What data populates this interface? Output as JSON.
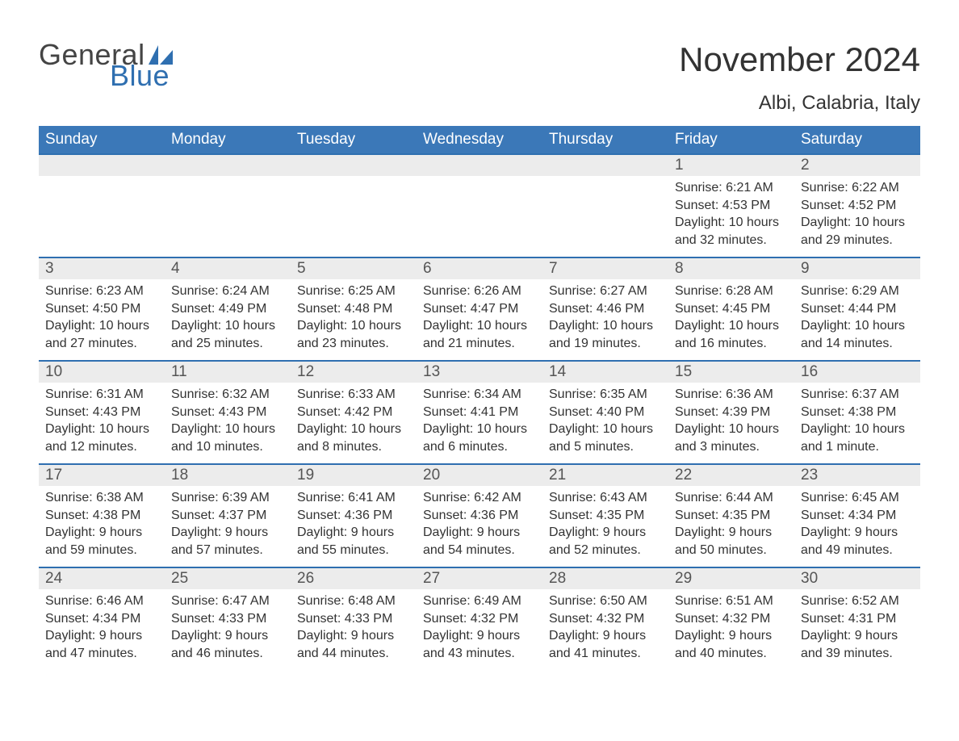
{
  "brand": {
    "word1": "General",
    "word2": "Blue",
    "sail_color": "#2f6fb0",
    "text_color": "#444444"
  },
  "title": "November 2024",
  "location": "Albi, Calabria, Italy",
  "colors": {
    "header_bg": "#3b78b8",
    "header_text": "#ffffff",
    "rule": "#2f6fb0",
    "daynum_bg": "#ececec",
    "body_text": "#333333"
  },
  "weekdays": [
    "Sunday",
    "Monday",
    "Tuesday",
    "Wednesday",
    "Thursday",
    "Friday",
    "Saturday"
  ],
  "weeks": [
    [
      null,
      null,
      null,
      null,
      null,
      {
        "n": "1",
        "sunrise": "Sunrise: 6:21 AM",
        "sunset": "Sunset: 4:53 PM",
        "day1": "Daylight: 10 hours",
        "day2": "and 32 minutes."
      },
      {
        "n": "2",
        "sunrise": "Sunrise: 6:22 AM",
        "sunset": "Sunset: 4:52 PM",
        "day1": "Daylight: 10 hours",
        "day2": "and 29 minutes."
      }
    ],
    [
      {
        "n": "3",
        "sunrise": "Sunrise: 6:23 AM",
        "sunset": "Sunset: 4:50 PM",
        "day1": "Daylight: 10 hours",
        "day2": "and 27 minutes."
      },
      {
        "n": "4",
        "sunrise": "Sunrise: 6:24 AM",
        "sunset": "Sunset: 4:49 PM",
        "day1": "Daylight: 10 hours",
        "day2": "and 25 minutes."
      },
      {
        "n": "5",
        "sunrise": "Sunrise: 6:25 AM",
        "sunset": "Sunset: 4:48 PM",
        "day1": "Daylight: 10 hours",
        "day2": "and 23 minutes."
      },
      {
        "n": "6",
        "sunrise": "Sunrise: 6:26 AM",
        "sunset": "Sunset: 4:47 PM",
        "day1": "Daylight: 10 hours",
        "day2": "and 21 minutes."
      },
      {
        "n": "7",
        "sunrise": "Sunrise: 6:27 AM",
        "sunset": "Sunset: 4:46 PM",
        "day1": "Daylight: 10 hours",
        "day2": "and 19 minutes."
      },
      {
        "n": "8",
        "sunrise": "Sunrise: 6:28 AM",
        "sunset": "Sunset: 4:45 PM",
        "day1": "Daylight: 10 hours",
        "day2": "and 16 minutes."
      },
      {
        "n": "9",
        "sunrise": "Sunrise: 6:29 AM",
        "sunset": "Sunset: 4:44 PM",
        "day1": "Daylight: 10 hours",
        "day2": "and 14 minutes."
      }
    ],
    [
      {
        "n": "10",
        "sunrise": "Sunrise: 6:31 AM",
        "sunset": "Sunset: 4:43 PM",
        "day1": "Daylight: 10 hours",
        "day2": "and 12 minutes."
      },
      {
        "n": "11",
        "sunrise": "Sunrise: 6:32 AM",
        "sunset": "Sunset: 4:43 PM",
        "day1": "Daylight: 10 hours",
        "day2": "and 10 minutes."
      },
      {
        "n": "12",
        "sunrise": "Sunrise: 6:33 AM",
        "sunset": "Sunset: 4:42 PM",
        "day1": "Daylight: 10 hours",
        "day2": "and 8 minutes."
      },
      {
        "n": "13",
        "sunrise": "Sunrise: 6:34 AM",
        "sunset": "Sunset: 4:41 PM",
        "day1": "Daylight: 10 hours",
        "day2": "and 6 minutes."
      },
      {
        "n": "14",
        "sunrise": "Sunrise: 6:35 AM",
        "sunset": "Sunset: 4:40 PM",
        "day1": "Daylight: 10 hours",
        "day2": "and 5 minutes."
      },
      {
        "n": "15",
        "sunrise": "Sunrise: 6:36 AM",
        "sunset": "Sunset: 4:39 PM",
        "day1": "Daylight: 10 hours",
        "day2": "and 3 minutes."
      },
      {
        "n": "16",
        "sunrise": "Sunrise: 6:37 AM",
        "sunset": "Sunset: 4:38 PM",
        "day1": "Daylight: 10 hours",
        "day2": "and 1 minute."
      }
    ],
    [
      {
        "n": "17",
        "sunrise": "Sunrise: 6:38 AM",
        "sunset": "Sunset: 4:38 PM",
        "day1": "Daylight: 9 hours",
        "day2": "and 59 minutes."
      },
      {
        "n": "18",
        "sunrise": "Sunrise: 6:39 AM",
        "sunset": "Sunset: 4:37 PM",
        "day1": "Daylight: 9 hours",
        "day2": "and 57 minutes."
      },
      {
        "n": "19",
        "sunrise": "Sunrise: 6:41 AM",
        "sunset": "Sunset: 4:36 PM",
        "day1": "Daylight: 9 hours",
        "day2": "and 55 minutes."
      },
      {
        "n": "20",
        "sunrise": "Sunrise: 6:42 AM",
        "sunset": "Sunset: 4:36 PM",
        "day1": "Daylight: 9 hours",
        "day2": "and 54 minutes."
      },
      {
        "n": "21",
        "sunrise": "Sunrise: 6:43 AM",
        "sunset": "Sunset: 4:35 PM",
        "day1": "Daylight: 9 hours",
        "day2": "and 52 minutes."
      },
      {
        "n": "22",
        "sunrise": "Sunrise: 6:44 AM",
        "sunset": "Sunset: 4:35 PM",
        "day1": "Daylight: 9 hours",
        "day2": "and 50 minutes."
      },
      {
        "n": "23",
        "sunrise": "Sunrise: 6:45 AM",
        "sunset": "Sunset: 4:34 PM",
        "day1": "Daylight: 9 hours",
        "day2": "and 49 minutes."
      }
    ],
    [
      {
        "n": "24",
        "sunrise": "Sunrise: 6:46 AM",
        "sunset": "Sunset: 4:34 PM",
        "day1": "Daylight: 9 hours",
        "day2": "and 47 minutes."
      },
      {
        "n": "25",
        "sunrise": "Sunrise: 6:47 AM",
        "sunset": "Sunset: 4:33 PM",
        "day1": "Daylight: 9 hours",
        "day2": "and 46 minutes."
      },
      {
        "n": "26",
        "sunrise": "Sunrise: 6:48 AM",
        "sunset": "Sunset: 4:33 PM",
        "day1": "Daylight: 9 hours",
        "day2": "and 44 minutes."
      },
      {
        "n": "27",
        "sunrise": "Sunrise: 6:49 AM",
        "sunset": "Sunset: 4:32 PM",
        "day1": "Daylight: 9 hours",
        "day2": "and 43 minutes."
      },
      {
        "n": "28",
        "sunrise": "Sunrise: 6:50 AM",
        "sunset": "Sunset: 4:32 PM",
        "day1": "Daylight: 9 hours",
        "day2": "and 41 minutes."
      },
      {
        "n": "29",
        "sunrise": "Sunrise: 6:51 AM",
        "sunset": "Sunset: 4:32 PM",
        "day1": "Daylight: 9 hours",
        "day2": "and 40 minutes."
      },
      {
        "n": "30",
        "sunrise": "Sunrise: 6:52 AM",
        "sunset": "Sunset: 4:31 PM",
        "day1": "Daylight: 9 hours",
        "day2": "and 39 minutes."
      }
    ]
  ]
}
